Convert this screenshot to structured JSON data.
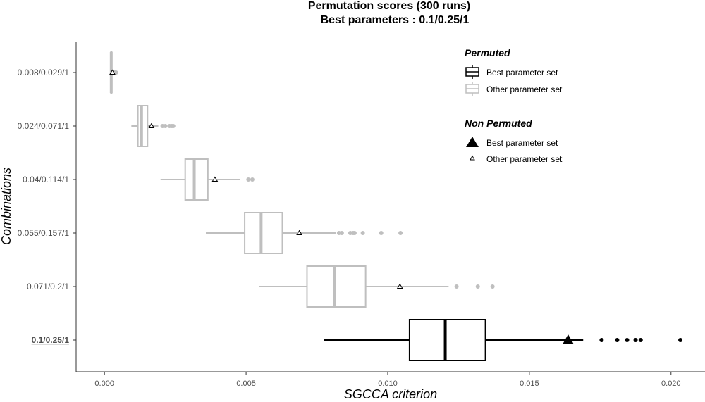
{
  "chart_data": {
    "type": "boxplot",
    "title_line1": "Permutation scores (300 runs)",
    "title_line2": "Best parameters : 0.1/0.25/1",
    "xlabel": "SGCCA criterion",
    "ylabel": "Combinations",
    "xlim": [
      -0.001,
      0.0212
    ],
    "x_ticks": [
      {
        "value": 0.0,
        "label": "0.000"
      },
      {
        "value": 0.005,
        "label": "0.005"
      },
      {
        "value": 0.01,
        "label": "0.010"
      },
      {
        "value": 0.015,
        "label": "0.015"
      },
      {
        "value": 0.02,
        "label": "0.020"
      }
    ],
    "grid": false,
    "legend_position": "top-right",
    "legend": {
      "permuted_title": "Permuted",
      "permuted_best": "Best parameter set",
      "permuted_other": "Other parameter set",
      "nonpermuted_title": "Non Permuted",
      "nonpermuted_best": "Best parameter set",
      "nonpermuted_other": "Other parameter set"
    },
    "colors": {
      "best": "#000000",
      "other": "#bfbfbf"
    },
    "combinations": [
      {
        "label": "0.008/0.029/1",
        "best": false,
        "whisker_low": 0.00023,
        "q1": 0.00023,
        "median": 0.00024,
        "q3": 0.00025,
        "whisker_high": 0.00026,
        "outliers": [
          0.00037,
          0.00041
        ],
        "observed": 0.00028
      },
      {
        "label": "0.024/0.071/1",
        "best": false,
        "whisker_low": 0.00095,
        "q1": 0.00118,
        "median": 0.00131,
        "q3": 0.00152,
        "whisker_high": 0.0019,
        "outliers": [
          0.00205,
          0.00215,
          0.0023,
          0.00238,
          0.00243
        ],
        "observed": 0.00166
      },
      {
        "label": "0.04/0.114/1",
        "best": false,
        "whisker_low": 0.00198,
        "q1": 0.00285,
        "median": 0.00317,
        "q3": 0.00365,
        "whisker_high": 0.00478,
        "outliers": [
          0.00508,
          0.00522
        ],
        "observed": 0.0039
      },
      {
        "label": "0.055/0.157/1",
        "best": false,
        "whisker_low": 0.00358,
        "q1": 0.00495,
        "median": 0.00553,
        "q3": 0.00628,
        "whisker_high": 0.00818,
        "outliers": [
          0.00828,
          0.00838,
          0.00868,
          0.00878,
          0.00883,
          0.00912,
          0.00977,
          0.01045
        ],
        "observed": 0.00688
      },
      {
        "label": "0.071/0.2/1",
        "best": false,
        "whisker_low": 0.00545,
        "q1": 0.00715,
        "median": 0.00813,
        "q3": 0.00922,
        "whisker_high": 0.01215,
        "outliers": [
          0.01243,
          0.01318,
          0.0137
        ],
        "observed": 0.01043
      },
      {
        "label": "0.1/0.25/1",
        "best": true,
        "whisker_low": 0.00775,
        "q1": 0.01077,
        "median": 0.01203,
        "q3": 0.01345,
        "whisker_high": 0.0169,
        "outliers": [
          0.01755,
          0.0181,
          0.01845,
          0.01875,
          0.01893,
          0.02033
        ],
        "observed": 0.01637
      }
    ]
  }
}
